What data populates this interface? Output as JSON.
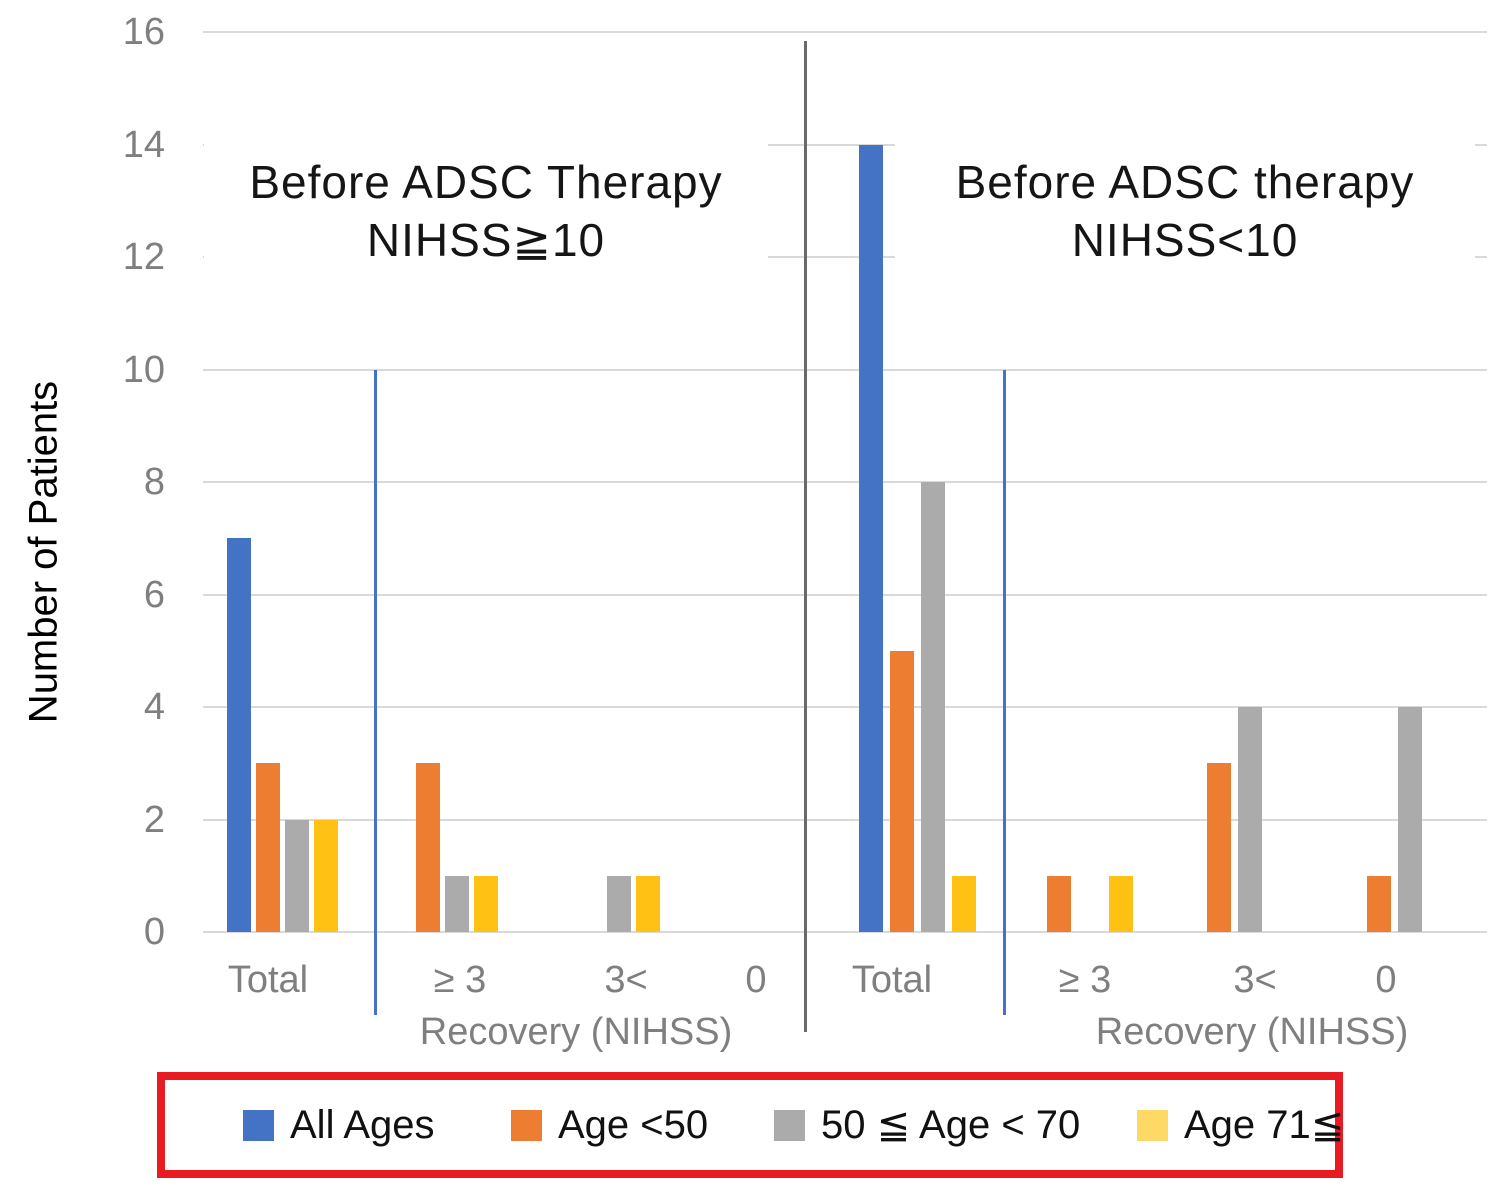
{
  "chart_data": {
    "type": "bar",
    "title": "",
    "ylabel": "Number of Patients",
    "xlabel": "",
    "ylim": [
      0,
      16
    ],
    "yticks": [
      0,
      2,
      4,
      6,
      8,
      10,
      12,
      14,
      16
    ],
    "grid": true,
    "legend_position": "bottom-outside",
    "categories": [
      "Total",
      "≥ 3",
      "3<",
      "0"
    ],
    "panels": [
      {
        "title_line1": "Before ADSC Therapy",
        "title_line2": "NIHSS≧10",
        "axis_group_label": "Recovery (NIHSS)",
        "threshold_line_value": 10,
        "series": [
          {
            "name": "All Ages",
            "color": "#4472C4",
            "values": [
              7,
              0,
              0,
              0
            ]
          },
          {
            "name": "Age <50",
            "color": "#ED7D31",
            "values": [
              3,
              3,
              0,
              0
            ]
          },
          {
            "name": "50 ≦ Age < 70",
            "color": "#ABABAB",
            "values": [
              2,
              1,
              1,
              0
            ]
          },
          {
            "name": "Age 71≦",
            "color": "#FFC114",
            "values": [
              2,
              1,
              1,
              0
            ]
          }
        ]
      },
      {
        "title_line1": "Before ADSC therapy",
        "title_line2": "NIHSS<10",
        "axis_group_label": "Recovery (NIHSS)",
        "threshold_line_value": 10,
        "series": [
          {
            "name": "All Ages",
            "color": "#4472C4",
            "values": [
              14,
              0,
              0,
              0
            ]
          },
          {
            "name": "Age <50",
            "color": "#ED7D31",
            "values": [
              5,
              1,
              3,
              1
            ]
          },
          {
            "name": "50 ≦ Age < 70",
            "color": "#ABABAB",
            "values": [
              8,
              0,
              4,
              4
            ]
          },
          {
            "name": "Age 71≦",
            "color": "#FFC114",
            "values": [
              1,
              1,
              0,
              0
            ]
          }
        ]
      }
    ],
    "legend": [
      {
        "label": "All Ages",
        "color": "#4472C4"
      },
      {
        "label": "Age <50",
        "color": "#ED7D31"
      },
      {
        "label": "50 ≦ Age < 70",
        "color": "#ABABAB"
      },
      {
        "label": "Age 71≦",
        "color": "#FFD966"
      }
    ],
    "colors": {
      "gridline": "#D9D9D9",
      "axis_text": "#7F7F7F",
      "divider_line": "#6A6A6A",
      "threshold_line": "#4472C4",
      "legend_border": "#E81B23",
      "title_text": "#151515"
    }
  }
}
